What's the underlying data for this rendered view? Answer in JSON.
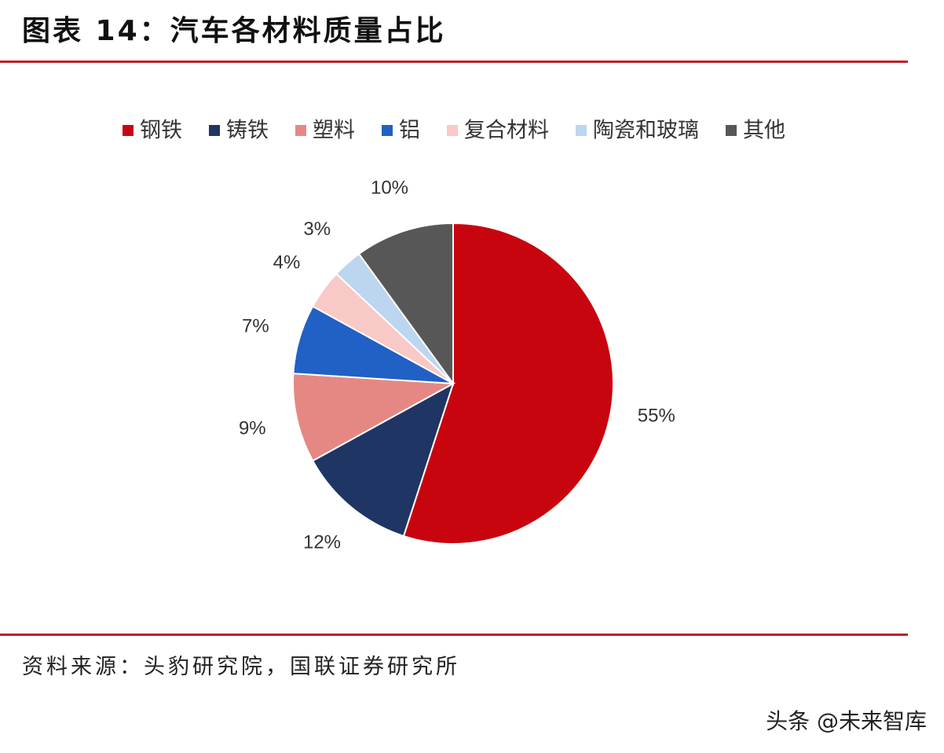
{
  "figure": {
    "title": "图表 14：汽车各材料质量占比",
    "source": "资料来源：头豹研究院，国联证券研究所",
    "watermark": "头条 @未来智库"
  },
  "chart_data": {
    "type": "pie",
    "title": "",
    "legend_position": "top",
    "start": "12 o'clock, clockwise",
    "slices": [
      {
        "label": "钢铁",
        "value": 55,
        "value_label": "55%",
        "color": "#c8050f"
      },
      {
        "label": "铸铁",
        "value": 12,
        "value_label": "12%",
        "color": "#1f3563"
      },
      {
        "label": "塑料",
        "value": 9,
        "value_label": "9%",
        "color": "#e58884"
      },
      {
        "label": "铝",
        "value": 7,
        "value_label": "7%",
        "color": "#2160c4"
      },
      {
        "label": "复合材料",
        "value": 4,
        "value_label": "4%",
        "color": "#f8c9c7"
      },
      {
        "label": "陶瓷和玻璃",
        "value": 3,
        "value_label": "3%",
        "color": "#bcd6ef"
      },
      {
        "label": "其他",
        "value": 10,
        "value_label": "10%",
        "color": "#575757"
      }
    ]
  }
}
